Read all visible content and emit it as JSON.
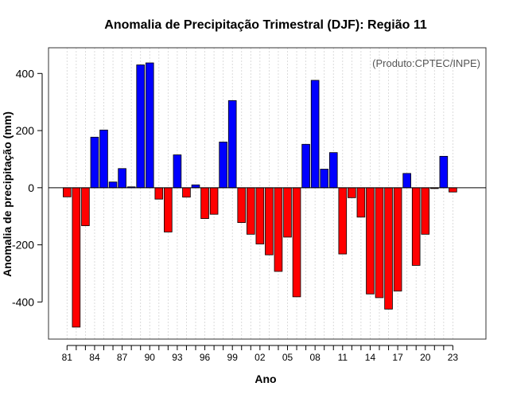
{
  "chart_data": {
    "type": "bar",
    "title": "Anomalia de Precipitação Trimestral (DJF): Região 11",
    "xlabel": "Ano",
    "ylabel": "Anomalia de precipitação (mm)",
    "credit": "(Produto:CPTEC/INPE)",
    "ylim": [
      -530,
      490
    ],
    "yticks": [
      -400,
      -200,
      0,
      200,
      400
    ],
    "years": [
      "81",
      "82",
      "83",
      "84",
      "85",
      "86",
      "87",
      "88",
      "89",
      "90",
      "91",
      "92",
      "93",
      "94",
      "95",
      "96",
      "97",
      "98",
      "99",
      "00",
      "01",
      "02",
      "03",
      "04",
      "05",
      "06",
      "07",
      "08",
      "09",
      "10",
      "11",
      "12",
      "13",
      "14",
      "15",
      "16",
      "17",
      "18",
      "19",
      "20",
      "21",
      "22",
      "23"
    ],
    "xtick_labels": [
      "81",
      "84",
      "87",
      "90",
      "93",
      "96",
      "99",
      "02",
      "05",
      "08",
      "11",
      "14",
      "17",
      "20",
      "23"
    ],
    "values": [
      -32,
      -488,
      -133,
      177,
      202,
      20,
      67,
      3,
      430,
      437,
      -40,
      -155,
      115,
      -33,
      10,
      -108,
      -93,
      160,
      305,
      -122,
      -163,
      -197,
      -235,
      -293,
      -173,
      -382,
      152,
      376,
      65,
      123,
      -232,
      -35,
      -103,
      -372,
      -385,
      -425,
      -362,
      50,
      -272,
      -163,
      -3,
      110,
      -15
    ],
    "positive_color": "#0000ff",
    "negative_color": "#ff0000"
  }
}
